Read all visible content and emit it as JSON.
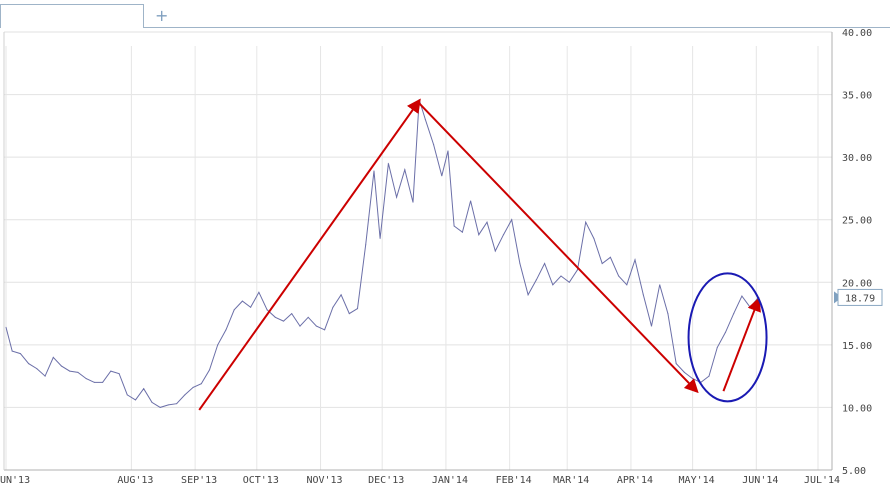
{
  "toolbar": {
    "add_tab_label": "+"
  },
  "chart_data": {
    "type": "line",
    "title": "",
    "xlabel": "",
    "ylabel": "",
    "ylim": [
      5,
      40
    ],
    "yticks": [
      "40.00",
      "35.00",
      "30.00",
      "25.00",
      "20.00",
      "15.00",
      "10.00",
      "5.00"
    ],
    "xticks": [
      {
        "label": "UN'13",
        "date": "2013-06-01"
      },
      {
        "label": "AUG'13",
        "date": "2013-08-01"
      },
      {
        "label": "SEP'13",
        "date": "2013-09-01"
      },
      {
        "label": "OCT'13",
        "date": "2013-10-01"
      },
      {
        "label": "NOV'13",
        "date": "2013-11-01"
      },
      {
        "label": "DEC'13",
        "date": "2013-12-01"
      },
      {
        "label": "JAN'14",
        "date": "2014-01-01"
      },
      {
        "label": "FEB'14",
        "date": "2014-02-01"
      },
      {
        "label": "MAR'14",
        "date": "2014-03-01"
      },
      {
        "label": "APR'14",
        "date": "2014-04-01"
      },
      {
        "label": "MAY'14",
        "date": "2014-05-01"
      },
      {
        "label": "JUN'14",
        "date": "2014-06-01"
      },
      {
        "label": "JUL'14",
        "date": "2014-07-01"
      }
    ],
    "series": [
      {
        "color": "#6b6fa8",
        "points": [
          [
            "2013-06-01",
            16.4
          ],
          [
            "2013-06-04",
            14.5
          ],
          [
            "2013-06-08",
            14.3
          ],
          [
            "2013-06-12",
            13.5
          ],
          [
            "2013-06-16",
            13.1
          ],
          [
            "2013-06-20",
            12.5
          ],
          [
            "2013-06-24",
            14.0
          ],
          [
            "2013-06-28",
            13.3
          ],
          [
            "2013-07-02",
            12.9
          ],
          [
            "2013-07-06",
            12.8
          ],
          [
            "2013-07-10",
            12.3
          ],
          [
            "2013-07-14",
            12.0
          ],
          [
            "2013-07-18",
            12.0
          ],
          [
            "2013-07-22",
            12.9
          ],
          [
            "2013-07-26",
            12.7
          ],
          [
            "2013-07-30",
            11.0
          ],
          [
            "2013-08-03",
            10.6
          ],
          [
            "2013-08-07",
            11.5
          ],
          [
            "2013-08-11",
            10.4
          ],
          [
            "2013-08-15",
            10.0
          ],
          [
            "2013-08-19",
            10.2
          ],
          [
            "2013-08-23",
            10.3
          ],
          [
            "2013-08-27",
            11.0
          ],
          [
            "2013-08-31",
            11.6
          ],
          [
            "2013-09-04",
            11.9
          ],
          [
            "2013-09-08",
            13.0
          ],
          [
            "2013-09-12",
            15.0
          ],
          [
            "2013-09-16",
            16.2
          ],
          [
            "2013-09-20",
            17.8
          ],
          [
            "2013-09-24",
            18.5
          ],
          [
            "2013-09-28",
            18.0
          ],
          [
            "2013-10-02",
            19.2
          ],
          [
            "2013-10-06",
            17.8
          ],
          [
            "2013-10-10",
            17.2
          ],
          [
            "2013-10-14",
            16.9
          ],
          [
            "2013-10-18",
            17.5
          ],
          [
            "2013-10-22",
            16.5
          ],
          [
            "2013-10-26",
            17.2
          ],
          [
            "2013-10-30",
            16.5
          ],
          [
            "2013-11-03",
            16.2
          ],
          [
            "2013-11-07",
            18.0
          ],
          [
            "2013-11-11",
            19.0
          ],
          [
            "2013-11-15",
            17.5
          ],
          [
            "2013-11-19",
            17.9
          ],
          [
            "2013-11-23",
            23.0
          ],
          [
            "2013-11-27",
            28.9
          ],
          [
            "2013-11-30",
            23.5
          ],
          [
            "2013-12-04",
            29.5
          ],
          [
            "2013-12-08",
            26.8
          ],
          [
            "2013-12-12",
            29.0
          ],
          [
            "2013-12-16",
            26.4
          ],
          [
            "2013-12-19",
            34.6
          ],
          [
            "2013-12-22",
            33.0
          ],
          [
            "2013-12-26",
            31.0
          ],
          [
            "2013-12-30",
            28.5
          ],
          [
            "2014-01-02",
            30.5
          ],
          [
            "2014-01-05",
            24.5
          ],
          [
            "2014-01-09",
            24.0
          ],
          [
            "2014-01-13",
            26.5
          ],
          [
            "2014-01-17",
            23.8
          ],
          [
            "2014-01-21",
            24.8
          ],
          [
            "2014-01-25",
            22.5
          ],
          [
            "2014-01-29",
            23.8
          ],
          [
            "2014-02-02",
            25.0
          ],
          [
            "2014-02-06",
            21.5
          ],
          [
            "2014-02-10",
            19.0
          ],
          [
            "2014-02-14",
            20.2
          ],
          [
            "2014-02-18",
            21.5
          ],
          [
            "2014-02-22",
            19.8
          ],
          [
            "2014-02-26",
            20.5
          ],
          [
            "2014-03-02",
            20.0
          ],
          [
            "2014-03-06",
            21.0
          ],
          [
            "2014-03-10",
            24.8
          ],
          [
            "2014-03-14",
            23.5
          ],
          [
            "2014-03-18",
            21.5
          ],
          [
            "2014-03-22",
            22.0
          ],
          [
            "2014-03-26",
            20.5
          ],
          [
            "2014-03-30",
            19.8
          ],
          [
            "2014-04-03",
            21.8
          ],
          [
            "2014-04-07",
            19.0
          ],
          [
            "2014-04-11",
            16.5
          ],
          [
            "2014-04-15",
            19.8
          ],
          [
            "2014-04-19",
            17.5
          ],
          [
            "2014-04-23",
            13.5
          ],
          [
            "2014-04-27",
            12.8
          ],
          [
            "2014-05-01",
            12.3
          ],
          [
            "2014-05-05",
            12.0
          ],
          [
            "2014-05-09",
            12.5
          ],
          [
            "2014-05-13",
            14.8
          ],
          [
            "2014-05-17",
            16.0
          ],
          [
            "2014-05-21",
            17.5
          ],
          [
            "2014-05-25",
            18.9
          ],
          [
            "2014-05-29",
            18.0
          ],
          [
            "2014-06-02",
            18.79
          ]
        ]
      }
    ],
    "last_value_label": "18.79",
    "annotations": [
      {
        "type": "arrow",
        "color": "#cc0000",
        "from": [
          "2013-09-03",
          9.8
        ],
        "to": [
          "2013-12-19",
          34.5
        ]
      },
      {
        "type": "arrow",
        "color": "#cc0000",
        "from": [
          "2013-12-19",
          34.3
        ],
        "to": [
          "2014-05-03",
          11.3
        ]
      },
      {
        "type": "arrow",
        "color": "#cc0000",
        "from": [
          "2014-05-16",
          11.3
        ],
        "to": [
          "2014-06-02",
          18.6
        ]
      },
      {
        "type": "ellipse",
        "color": "#1a1ab3",
        "center": [
          "2014-05-18",
          15.6
        ]
      }
    ],
    "grid": true,
    "legend": "none"
  }
}
